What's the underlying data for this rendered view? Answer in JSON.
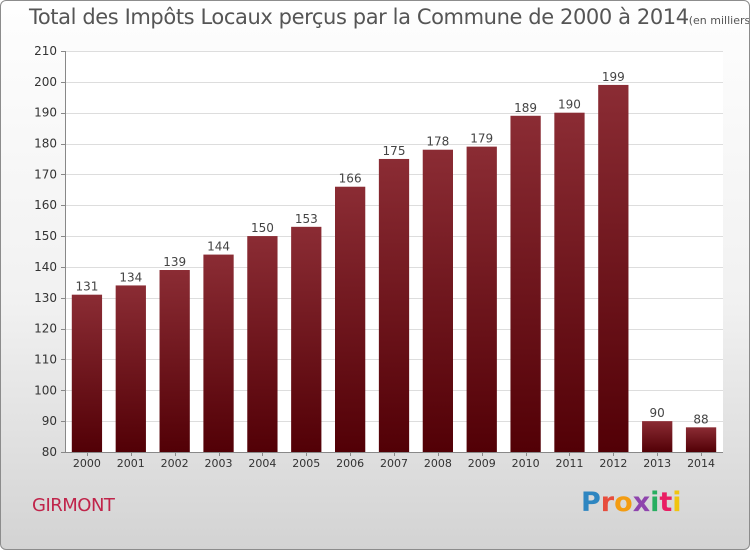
{
  "chart_data": {
    "type": "bar",
    "title": "Total des Impôts Locaux perçus par la Commune de 2000 à 2014",
    "unit_label": "(en milliers d'€)",
    "categories": [
      "2000",
      "2001",
      "2002",
      "2003",
      "2004",
      "2005",
      "2006",
      "2007",
      "2008",
      "2009",
      "2010",
      "2011",
      "2012",
      "2013",
      "2014"
    ],
    "values": [
      131,
      134,
      139,
      144,
      150,
      153,
      166,
      175,
      178,
      179,
      189,
      190,
      199,
      90,
      88
    ],
    "ylim": [
      80,
      210
    ],
    "yticks": [
      80,
      90,
      100,
      110,
      120,
      130,
      140,
      150,
      160,
      170,
      180,
      190,
      200,
      210
    ],
    "xlabel": "",
    "ylabel": "",
    "bar_color": "#7a1f24",
    "grid": true
  },
  "commune_name": "GIRMONT",
  "logo": {
    "letters": [
      {
        "ch": "P",
        "color": "#2e86c1"
      },
      {
        "ch": "r",
        "color": "#e74c3c"
      },
      {
        "ch": "o",
        "color": "#f39c12"
      },
      {
        "ch": "x",
        "color": "#8e44ad"
      },
      {
        "ch": "i",
        "color": "#27ae60"
      },
      {
        "ch": "t",
        "color": "#e91e63"
      },
      {
        "ch": "i",
        "color": "#f1c40f"
      }
    ]
  }
}
